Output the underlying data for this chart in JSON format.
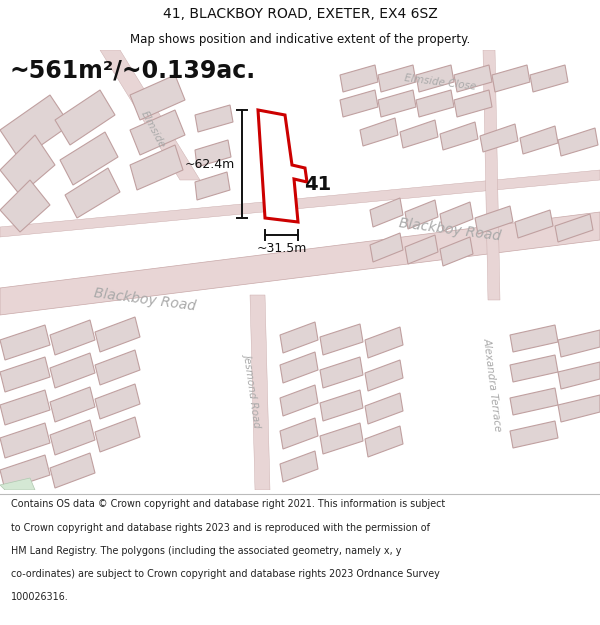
{
  "title": "41, BLACKBOY ROAD, EXETER, EX4 6SZ",
  "subtitle": "Map shows position and indicative extent of the property.",
  "area_label": "~561m²/~0.139ac.",
  "width_label": "~31.5m",
  "height_label": "~62.4m",
  "property_number": "41",
  "footer_lines": [
    "Contains OS data © Crown copyright and database right 2021. This information is subject",
    "to Crown copyright and database rights 2023 and is reproduced with the permission of",
    "HM Land Registry. The polygons (including the associated geometry, namely x, y",
    "co-ordinates) are subject to Crown copyright and database rights 2023 Ordnance Survey",
    "100026316."
  ],
  "map_bg": "#f5eded",
  "road_fill": "#e8d5d5",
  "road_edge": "#c8a8a8",
  "building_fill": "#e0d4d4",
  "building_edge": "#c0a0a0",
  "highlight_fill": "#ffffff",
  "highlight_edge": "#cc0000",
  "label_color": "#aaaaaa",
  "dim_color": "#111111",
  "text_color": "#111111",
  "green_fill": "#d4e8d4",
  "green_edge": "#b0c8b0"
}
